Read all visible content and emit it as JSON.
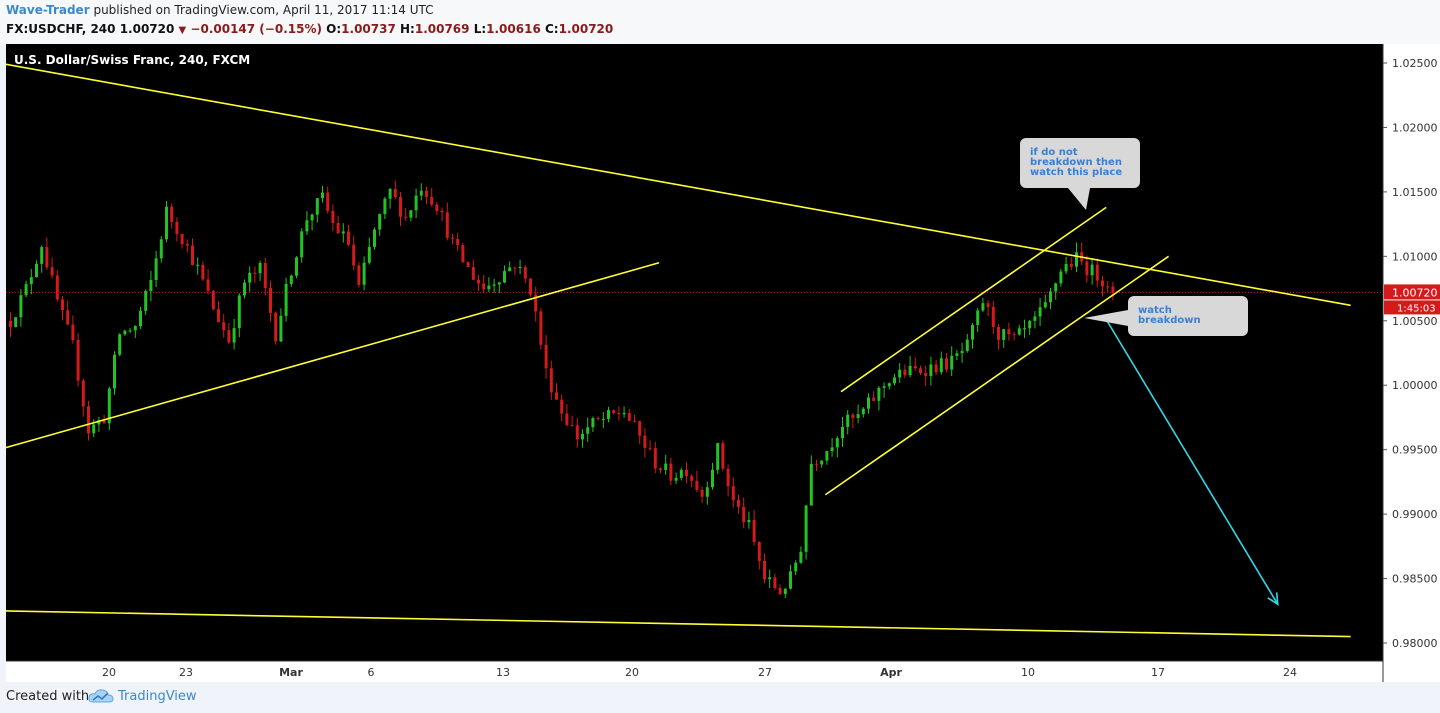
{
  "header": {
    "author": "Wave-Trader",
    "published_text": "published on TradingView.com, April 11, 2017 11:14 UTC",
    "symbol_line": "FX:USDCHF, 240",
    "last": "1.00720",
    "change": "−0.00147 (−0.15%)",
    "open_label": "O:",
    "open": "1.00737",
    "high_label": "H:",
    "high": "1.00769",
    "low_label": "L:",
    "low": "1.00616",
    "close_label": "C:",
    "close": "1.00720"
  },
  "footer": {
    "created_with": "Created with",
    "brand": "TradingView"
  },
  "colors": {
    "background": "#000000",
    "up": "#22c322",
    "down": "#d41a1a",
    "trendline": "#ffff33",
    "arrow": "#33d6e6",
    "price_line": "#d41a1a",
    "callout_bg": "#d8d8d8",
    "callout_text": "#3a7fd6"
  },
  "chart_data": {
    "type": "candlestick",
    "title": "U.S. Dollar/Swiss Franc, 240, FXCM",
    "x_ticks": [
      "20",
      "23",
      "Mar",
      "6",
      "13",
      "20",
      "27",
      "Apr",
      "10",
      "17",
      "24"
    ],
    "y_ticks": [
      "1.02500",
      "1.02000",
      "1.01500",
      "1.01000",
      "1.00500",
      "1.00000",
      "0.99500",
      "0.99000",
      "0.98500",
      "0.98000"
    ],
    "ylim": [
      0.9797,
      1.0273
    ],
    "last_price": {
      "value": 1.0072,
      "label": "1.00720",
      "countdown": "1:45:03"
    },
    "path": [
      [
        0,
        1.005
      ],
      [
        3,
        1.0075
      ],
      [
        6,
        1.011
      ],
      [
        9,
        1.0065
      ],
      [
        12,
        1.003
      ],
      [
        15,
        0.9965
      ],
      [
        18,
        0.9975
      ],
      [
        21,
        1.004
      ],
      [
        24,
        1.0045
      ],
      [
        27,
        1.008
      ],
      [
        30,
        1.0135
      ],
      [
        33,
        1.0115
      ],
      [
        36,
        1.009
      ],
      [
        39,
        1.006
      ],
      [
        42,
        1.0035
      ],
      [
        45,
        1.008
      ],
      [
        48,
        1.009
      ],
      [
        51,
        1.004
      ],
      [
        54,
        1.009
      ],
      [
        57,
        1.013
      ],
      [
        60,
        1.0145
      ],
      [
        62,
        1.0125
      ],
      [
        65,
        1.011
      ],
      [
        67,
        1.0075
      ],
      [
        70,
        1.012
      ],
      [
        73,
        1.015
      ],
      [
        76,
        1.013
      ],
      [
        79,
        1.0155
      ],
      [
        82,
        1.014
      ],
      [
        85,
        1.011
      ],
      [
        88,
        1.009
      ],
      [
        91,
        1.0075
      ],
      [
        94,
        1.0085
      ],
      [
        97,
        1.0095
      ],
      [
        100,
        1.0075
      ],
      [
        101,
        1.0055
      ],
      [
        103,
        1.001
      ],
      [
        106,
        0.998
      ],
      [
        109,
        0.996
      ],
      [
        112,
        0.997
      ],
      [
        115,
        0.9975
      ],
      [
        118,
        0.998
      ],
      [
        121,
        0.996
      ],
      [
        124,
        0.994
      ],
      [
        127,
        0.993
      ],
      [
        130,
        0.9935
      ],
      [
        133,
        0.9915
      ],
      [
        136,
        0.995
      ],
      [
        139,
        0.991
      ],
      [
        142,
        0.989
      ],
      [
        145,
        0.985
      ],
      [
        148,
        0.984
      ],
      [
        150,
        0.985
      ],
      [
        152,
        0.9875
      ],
      [
        154,
        0.994
      ],
      [
        157,
        0.995
      ],
      [
        160,
        0.997
      ],
      [
        163,
        0.9975
      ],
      [
        166,
        0.999
      ],
      [
        169,
        1.0005
      ],
      [
        172,
        1.001
      ],
      [
        175,
        1.0012
      ],
      [
        178,
        1.0015
      ],
      [
        181,
        1.0018
      ],
      [
        184,
        1.003
      ],
      [
        187,
        1.0065
      ],
      [
        190,
        1.004
      ],
      [
        193,
        1.0035
      ],
      [
        196,
        1.0045
      ],
      [
        199,
        1.006
      ],
      [
        202,
        1.009
      ],
      [
        205,
        1.0098
      ],
      [
        208,
        1.0088
      ],
      [
        211,
        1.008
      ],
      [
        212,
        1.0072
      ]
    ],
    "trendlines": [
      {
        "name": "upper-resistance",
        "from": [
          -2,
          1.025
        ],
        "to": [
          258,
          1.0062
        ]
      },
      {
        "name": "lower-support",
        "from": [
          -2,
          0.9825
        ],
        "to": [
          258,
          0.9805
        ]
      },
      {
        "name": "feb-support",
        "from": [
          -2,
          0.995
        ],
        "to": [
          125,
          1.0095
        ]
      },
      {
        "name": "channel-top",
        "from": [
          160,
          0.9995
        ],
        "to": [
          211,
          1.0138
        ]
      },
      {
        "name": "channel-bottom",
        "from": [
          157,
          0.9915
        ],
        "to": [
          223,
          1.01
        ]
      }
    ],
    "arrow": {
      "from": [
        211,
        1.0051
      ],
      "to": [
        244,
        0.983
      ]
    },
    "annotations": [
      {
        "text": "if do not breakdown then watch this place",
        "lines": [
          "if do not",
          "breakdown then",
          "watch this place"
        ],
        "anchor": [
          211,
          1.0135
        ]
      },
      {
        "text": "watch breakdown",
        "lines": [
          "watch",
          "breakdown"
        ],
        "anchor": [
          212,
          1.005
        ]
      }
    ]
  }
}
